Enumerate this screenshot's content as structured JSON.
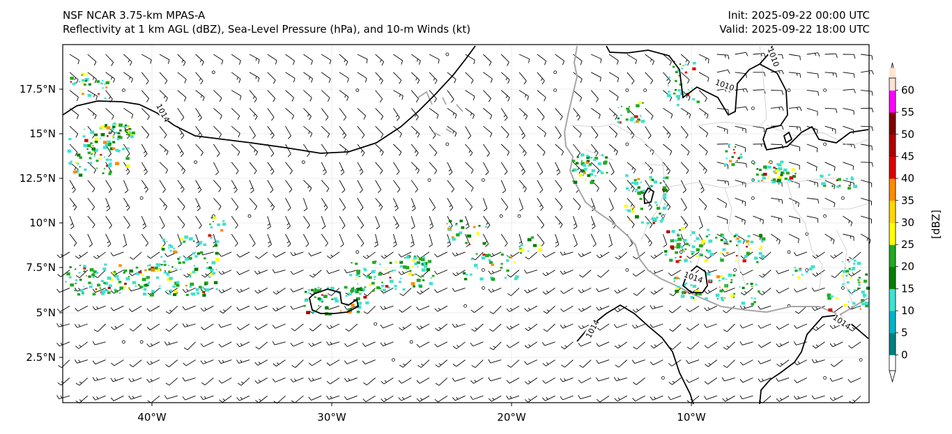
{
  "header": {
    "left_line1": "NSF NCAR 3.75-km MPAS-A",
    "left_line2": "Reflectivity at 1 km AGL (dBZ), Sea-Level Pressure (hPa), and 10-m Winds (kt)",
    "right_line1": "Init: 2025-09-22 00:00 UTC",
    "right_line2": "Valid: 2025-09-22 18:00 UTC"
  },
  "map": {
    "lon_labels": [
      "40°W",
      "30°W",
      "20°W",
      "10°W"
    ],
    "lat_labels": [
      "17.5°N",
      "15°N",
      "12.5°N",
      "10°N",
      "7.5°N",
      "5°N",
      "2.5°N"
    ],
    "isobar_labels": [
      "1014",
      "1010",
      "1010",
      "1014",
      "1014",
      "1014"
    ],
    "coastline_color": "#a6a6a6",
    "isobar_color": "#000000"
  },
  "colorbar": {
    "label": "[dBZ]",
    "ticks": [
      "0",
      "5",
      "10",
      "15",
      "20",
      "25",
      "30",
      "35",
      "40",
      "45",
      "50",
      "55",
      "60"
    ],
    "colors": [
      "#008080",
      "#00b3c8",
      "#40e0d0",
      "#008000",
      "#22aa22",
      "#ffff00",
      "#ffd700",
      "#ff8c00",
      "#dd0000",
      "#b00000",
      "#800000",
      "#ff00ff",
      "#ffe4d2"
    ]
  }
}
